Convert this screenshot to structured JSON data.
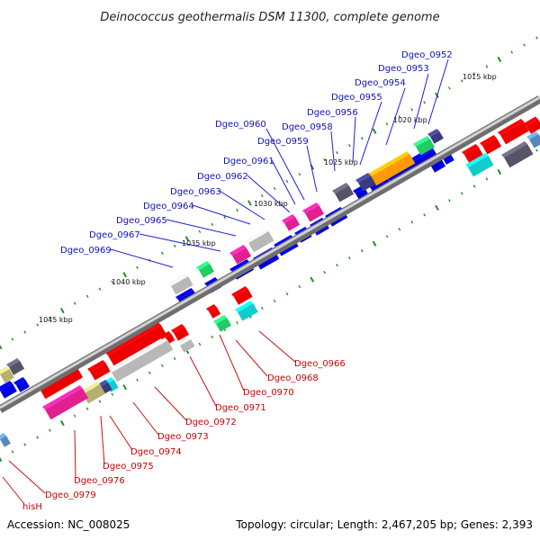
{
  "title": "Deinococcus geothermalis DSM 11300, complete genome",
  "footer": {
    "accession": "Accession: NC_008025",
    "topology": "Topology: circular; Length: 2,467,205 bp; Genes: 2,393"
  },
  "scale_labels": [
    "1015 kbp",
    "1020 kbp",
    "1025 kbp",
    "1030 kbp",
    "1035 kbp",
    "1040 kbp",
    "1045 kbp"
  ],
  "top_labels": [
    "Dgeo_0952",
    "Dgeo_0953",
    "Dgeo_0954",
    "Dgeo_0955",
    "Dgeo_0956",
    "Dgeo_0958",
    "Dgeo_0959",
    "Dgeo_0960",
    "Dgeo_0961",
    "Dgeo_0962",
    "Dgeo_0963",
    "Dgeo_0964",
    "Dgeo_0965",
    "Dgeo_0967",
    "Dgeo_0969"
  ],
  "bottom_labels": [
    "Dgeo_0966",
    "Dgeo_0968",
    "Dgeo_0970",
    "Dgeo_0971",
    "Dgeo_0972",
    "Dgeo_0973",
    "Dgeo_0974",
    "Dgeo_0975",
    "Dgeo_0976",
    "Dgeo_0979",
    "hisH"
  ],
  "colors": {
    "backbone": "#8c8c8c",
    "tick": "#2a8a2a",
    "forward_label": "#1010c0",
    "reverse_label": "#cc0000",
    "gene_blue": "#0000dd",
    "gene_red": "#ee0000",
    "gene_magenta": "#e0208f",
    "gene_gray": "#b8b8b8",
    "gene_green": "#22cc66",
    "gene_cyan": "#11cccc",
    "gene_orange": "#ff9900",
    "gene_olive": "#b5b070",
    "gene_dark": "#555566",
    "gene_navy": "#3a3a80",
    "gene_steel": "#5588bb"
  }
}
